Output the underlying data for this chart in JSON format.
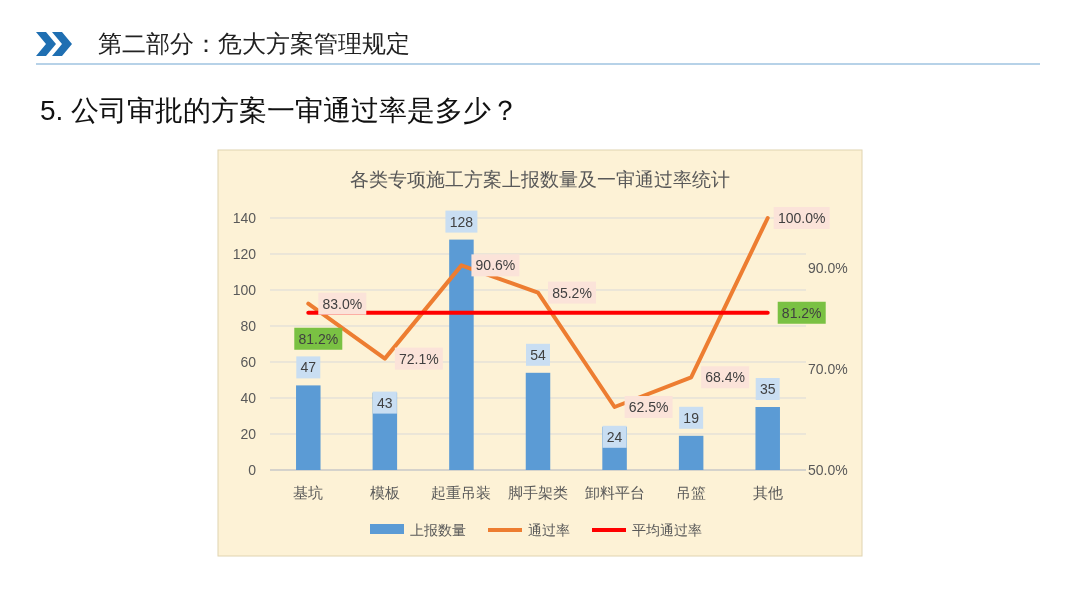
{
  "chart_data": {
    "type": "bar",
    "title": "各类专项施工方案上报数量及一审通过率统计",
    "annotations": [
      "第二部分：危大方案管理规定",
      "5. 公司审批的方案一审通过率是多少？"
    ],
    "categories": [
      "基坑",
      "模板",
      "起重吊装",
      "脚手架类",
      "卸料平台",
      "吊篮",
      "其他"
    ],
    "series": [
      {
        "name": "上报数量",
        "color": "#5b9bd5",
        "values": [
          47,
          43,
          128,
          54,
          24,
          19,
          35
        ],
        "value_labels": [
          "47",
          "43",
          "128",
          "54",
          "24",
          "19",
          "35"
        ]
      },
      {
        "name": "通过率",
        "type": "line",
        "axis": "y2",
        "color": "#ed7d31",
        "values": [
          83.0,
          72.1,
          90.6,
          85.2,
          62.5,
          68.4,
          100.0
        ],
        "value_labels": [
          "83.0%",
          "72.1%",
          "90.6%",
          "85.2%",
          "62.5%",
          "68.4%",
          "100.0%"
        ]
      },
      {
        "name": "平均通过率",
        "type": "line",
        "axis": "y2",
        "color": "#ff0000",
        "values": [
          81.2,
          81.2,
          81.2,
          81.2,
          81.2,
          81.2,
          81.2
        ],
        "value_labels": [
          "81.2%",
          null,
          null,
          null,
          null,
          null,
          "81.2%"
        ]
      }
    ],
    "ylim": [
      0,
      140
    ],
    "yticks": [
      0,
      20,
      40,
      60,
      80,
      100,
      120,
      140
    ],
    "y2lim": [
      50,
      100
    ],
    "y2ticks": [
      {
        "value": 50,
        "label": "50.0%"
      },
      {
        "value": 70,
        "label": "70.0%"
      },
      {
        "value": 90,
        "label": "90.0%"
      }
    ],
    "grid": "y",
    "legend": "bottom",
    "marker": "none",
    "line_style": "solid"
  }
}
